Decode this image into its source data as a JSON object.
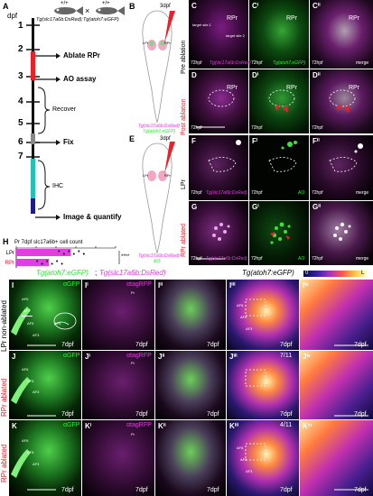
{
  "timeline": {
    "dpf_label": "dpf",
    "days": [
      "1",
      "2",
      "3",
      "4",
      "5",
      "6",
      "7"
    ],
    "cross": {
      "symbol": "×",
      "genotype_left": "+/+",
      "genotype_right": "+/+",
      "line": "Tg(slc17a6b:DsRed);Tg(atoh7:eGFP)"
    },
    "steps": [
      "Ablate RPr",
      "AO assay",
      "Recover",
      "Fix",
      "IHC",
      "Image & quantify"
    ],
    "colors": {
      "ablate": "#e8202a",
      "ihc": "#26c1b5",
      "image": "#1c1c8c"
    }
  },
  "panels": {
    "A": "A",
    "B": "B",
    "C": "C",
    "D": "D",
    "E": "E",
    "F": "F",
    "G": "G",
    "H": "H",
    "Ci": "Cⁱ",
    "Cii": "Cⁱⁱ",
    "Di": "Dⁱ",
    "Dii": "Dⁱⁱ",
    "Fi": "Fⁱ",
    "Fii": "Fⁱⁱ",
    "Gi": "Gⁱ",
    "Gii": "Gⁱⁱ",
    "I": "I",
    "Ii": "Iⁱ",
    "Iii": "Iⁱⁱ",
    "Iiii": "Iⁱⁱⁱ",
    "Iiv": "Iⁱᵛ",
    "J": "J",
    "Ji": "Jⁱ",
    "Jii": "Jⁱⁱ",
    "Jiii": "Jⁱⁱⁱ",
    "Jiv": "Jⁱᵛ",
    "K": "K",
    "Ki": "Kⁱ",
    "Kii": "Kⁱⁱ",
    "Kiii": "Kⁱⁱⁱ",
    "Kiv": "Kⁱᵛ"
  },
  "schematic_B": {
    "age": "3dpf",
    "legend1": "Tg(slc17a6b:DsRed)",
    "legend2": "Tg(atoh7:eGFP)",
    "lpr": "LPr",
    "rpr": "RPr"
  },
  "schematic_E": {
    "age": "3dpf",
    "legend1": "Tg(slc17a6b:DsRed)",
    "legend2": "AO",
    "lpr": "LPr",
    "rpr": "RPr"
  },
  "row_labels": {
    "pre": "Pre ablation",
    "post": "Post ablation",
    "lpr": "LPr",
    "rpr": "RPr ablated"
  },
  "C": {
    "rpr": "RPr",
    "t1": "target site 1",
    "t2": "target site 2",
    "time": "72hpf",
    "caption": "Tg(slc17a6b:DsRed)",
    "caption_i": "Tg(atoh7:eGFP)",
    "merge": "merge"
  },
  "D": {
    "rpr": "RPr",
    "time": "72hpf"
  },
  "F": {
    "time": "72hpf",
    "caption": "Tg(slc17a6b:DsRed)",
    "caption_i": "AO",
    "merge": "merge"
  },
  "chart_data": {
    "type": "bar",
    "title": "Pr 7dpf slc17a6b+ cell count",
    "categories": [
      "LPr",
      "RPr"
    ],
    "values": [
      55,
      33
    ],
    "xlim": [
      0,
      100
    ],
    "ticks": [
      0,
      20,
      40,
      60,
      80,
      100
    ],
    "colors": [
      "#e23de0",
      "#e23de0"
    ],
    "significance": "****"
  },
  "lower": {
    "header_left_a": "Tg(atoh7:eGFP)",
    "header_left_sep": ";",
    "header_left_b": "Tg(slc17a6b:DsRed)",
    "header_right": "Tg(atoh7:eGFP)",
    "colorbar_low": "0",
    "colorbar_high": "L",
    "ch_gfp": "αGFP",
    "ch_rfp": "αtagRFP",
    "dpf": "7dpf",
    "af": [
      "AF6",
      "AF7",
      "AF9",
      "AF5",
      "AF3"
    ],
    "ratio_j": "7/11",
    "ratio_k": "4/11",
    "pr": "Pr"
  }
}
